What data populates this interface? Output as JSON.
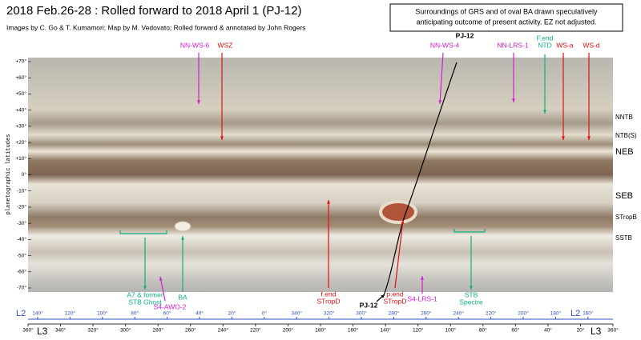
{
  "header": {
    "title": "2018 Feb.26-28 :  Rolled forward to 2018 April 1 (PJ-12)",
    "credits": "Images by C. Go & T. Kumamori;   Map by M. Vedovato;   Rolled forward & annotated by John Rogers",
    "note": [
      "Surroundings of GRS and of oval BA drawn speculatively",
      "anticipating outcome of present activity.  EZ not adjusted."
    ]
  },
  "map": {
    "y_label": "planetographic latitudes",
    "lat_ticks": [
      "+70°",
      "+60°",
      "+50°",
      "+40°",
      "+30°",
      "+20°",
      "+10°",
      "0°",
      "-10°",
      "-20°",
      "-30°",
      "-40°",
      "-50°",
      "-60°",
      "-70°"
    ],
    "band_labels": [
      "NNTB",
      "NTB(S)",
      "NEB",
      "SEB",
      "STropB",
      "SSTB"
    ]
  },
  "annotations": [
    {
      "text": [
        "NN-WS-6"
      ],
      "color": "magenta"
    },
    {
      "text": [
        "WSZ"
      ],
      "color": "red"
    },
    {
      "text": [
        "PJ-12"
      ],
      "color": "black"
    },
    {
      "text": [
        "NN-WS-4"
      ],
      "color": "magenta"
    },
    {
      "text": [
        "NN-LRS-1"
      ],
      "color": "magenta"
    },
    {
      "text": [
        "F.end",
        "NTD"
      ],
      "color": "green"
    },
    {
      "text": [
        "WS-a"
      ],
      "color": "red"
    },
    {
      "text": [
        "WS-d"
      ],
      "color": "red"
    },
    {
      "text": [
        "A7 & former",
        "STB Ghost"
      ],
      "color": "green"
    },
    {
      "text": [
        "BA"
      ],
      "color": "green"
    },
    {
      "text": [
        "S4-AWO-2"
      ],
      "color": "magenta"
    },
    {
      "text": [
        "f.end",
        "STropD"
      ],
      "color": "red"
    },
    {
      "text": [
        "PJ-12"
      ],
      "color": "black"
    },
    {
      "text": [
        "p.end",
        "STropD"
      ],
      "color": "red"
    },
    {
      "text": [
        "S4-LRS-1"
      ],
      "color": "magenta"
    },
    {
      "text": [
        "STB",
        "Spectre"
      ],
      "color": "green"
    }
  ],
  "l2": {
    "name": "L2",
    "ticks": [
      "140°",
      "120°",
      "100°",
      "80°",
      "60°",
      "40°",
      "20°",
      "0°",
      "340°",
      "320°",
      "300°",
      "280°",
      "260°",
      "240°",
      "220°",
      "200°",
      "180°",
      "160°"
    ]
  },
  "l3": {
    "name": "L3",
    "ticks": [
      "360°",
      "340°",
      "320°",
      "300°",
      "280°",
      "260°",
      "240°",
      "220°",
      "200°",
      "180°",
      "160°",
      "140°",
      "120°",
      "100°",
      "80°",
      "60°",
      "40°",
      "20°",
      "360°"
    ]
  }
}
